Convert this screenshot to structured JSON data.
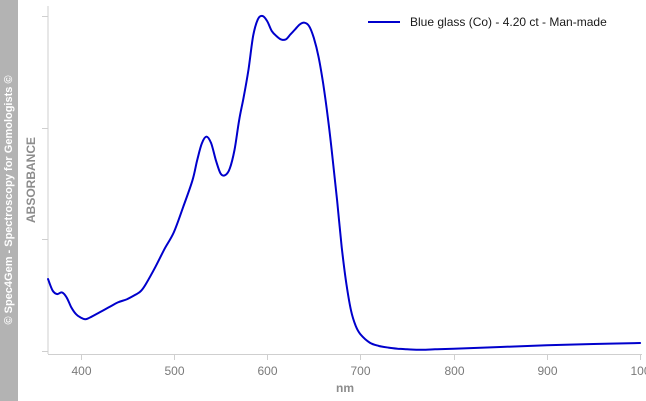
{
  "watermark": "© Spec4Gem - Spectroscopy for Gemologists ©",
  "chart_data": {
    "type": "line",
    "xlabel": "nm",
    "ylabel": "ABSORBANCE",
    "xlim": [
      365,
      1002
    ],
    "ylim": [
      0,
      1.0
    ],
    "x_ticks": [
      "400",
      "500",
      "600",
      "700",
      "800",
      "900",
      "100"
    ],
    "grid": false,
    "legend_position": "top-right",
    "series": [
      {
        "name": "Blue glass (Co) - 4.20 ct - Man-made",
        "color": "#0000cc",
        "x": [
          365,
          370,
          375,
          380,
          385,
          390,
          395,
          400,
          405,
          410,
          420,
          430,
          440,
          450,
          460,
          465,
          470,
          480,
          490,
          500,
          510,
          520,
          525,
          530,
          535,
          540,
          545,
          550,
          555,
          560,
          565,
          570,
          575,
          580,
          585,
          590,
          595,
          600,
          605,
          610,
          615,
          620,
          625,
          630,
          635,
          640,
          645,
          650,
          655,
          660,
          665,
          670,
          675,
          680,
          685,
          690,
          695,
          700,
          710,
          720,
          730,
          740,
          750,
          760,
          770,
          780,
          800,
          850,
          900,
          950,
          1000
        ],
        "y": [
          0.215,
          0.18,
          0.17,
          0.175,
          0.16,
          0.13,
          0.11,
          0.1,
          0.095,
          0.1,
          0.115,
          0.13,
          0.145,
          0.155,
          0.17,
          0.18,
          0.2,
          0.25,
          0.305,
          0.355,
          0.43,
          0.51,
          0.57,
          0.62,
          0.64,
          0.62,
          0.57,
          0.53,
          0.525,
          0.545,
          0.6,
          0.69,
          0.76,
          0.84,
          0.94,
          0.99,
          1.0,
          0.985,
          0.955,
          0.94,
          0.93,
          0.93,
          0.945,
          0.96,
          0.975,
          0.98,
          0.97,
          0.935,
          0.88,
          0.8,
          0.7,
          0.58,
          0.45,
          0.31,
          0.2,
          0.12,
          0.075,
          0.05,
          0.025,
          0.015,
          0.01,
          0.007,
          0.005,
          0.004,
          0.004,
          0.005,
          0.007,
          0.012,
          0.017,
          0.021,
          0.024
        ]
      }
    ]
  }
}
